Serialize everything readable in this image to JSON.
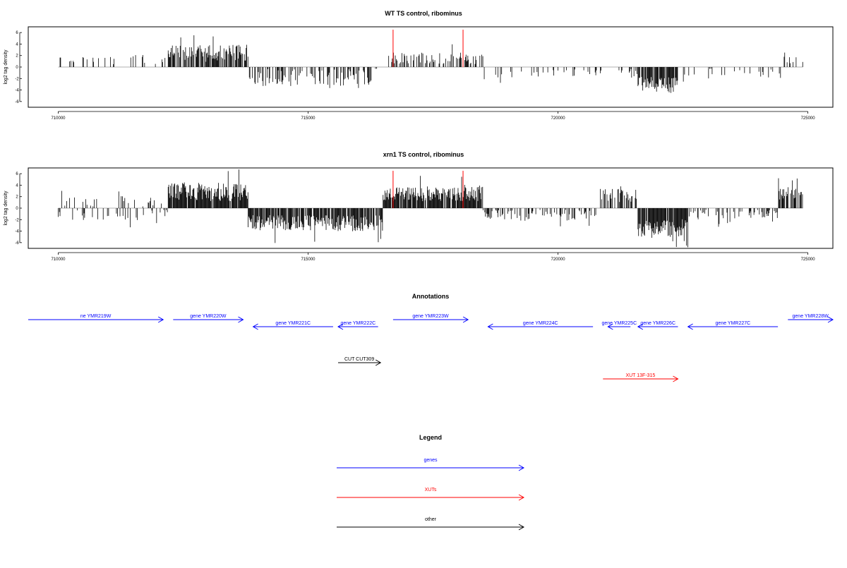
{
  "chart_data": [
    {
      "type": "bar",
      "title": "WT TS control, ribominus",
      "ylabel": "log2 tag density",
      "xlim": [
        709400,
        725500
      ],
      "ylim": [
        -7,
        7
      ],
      "x_ticks": [
        710000,
        715000,
        720000,
        725000
      ],
      "x_tick_labels": [
        "710000",
        "715000",
        "720000",
        "725000"
      ],
      "y_ticks": [
        -6,
        -4,
        -2,
        0,
        2,
        4,
        6
      ],
      "y_tick_labels": [
        "-6",
        "-4",
        "-2",
        "0",
        "2",
        "4",
        "6"
      ],
      "red_lines": [
        716700,
        718100
      ],
      "red_line_value": 6.5,
      "segments": [
        {
          "start": 710000,
          "end": 712200,
          "level": 1.3,
          "var": 0.8,
          "dens": 0.12,
          "sign": 1
        },
        {
          "start": 712200,
          "end": 713800,
          "level": 2.4,
          "var": 1.5,
          "dens": 0.7,
          "sign": 1
        },
        {
          "start": 713800,
          "end": 716300,
          "level": 1.8,
          "var": 1.5,
          "dens": 0.45,
          "sign": -1
        },
        {
          "start": 716300,
          "end": 716600,
          "level": 0.4,
          "var": 0.3,
          "dens": 0.1,
          "sign": -1
        },
        {
          "start": 716600,
          "end": 718500,
          "level": 1.5,
          "var": 1.0,
          "dens": 0.4,
          "sign": 1
        },
        {
          "start": 718500,
          "end": 720800,
          "level": 1.0,
          "var": 0.8,
          "dens": 0.1,
          "sign": -1
        },
        {
          "start": 720800,
          "end": 721600,
          "level": 1.1,
          "var": 0.8,
          "dens": 0.2,
          "sign": -1
        },
        {
          "start": 721600,
          "end": 722400,
          "level": 3.0,
          "var": 1.3,
          "dens": 0.9,
          "sign": -1
        },
        {
          "start": 722400,
          "end": 724500,
          "level": 1.0,
          "var": 1.0,
          "dens": 0.12,
          "sign": -1
        },
        {
          "start": 724500,
          "end": 724900,
          "level": 1.2,
          "var": 0.6,
          "dens": 0.25,
          "sign": 1
        }
      ],
      "seed": 11
    },
    {
      "type": "bar",
      "title": "xrn1 TS control, ribominus",
      "ylabel": "log2 tag density",
      "xlim": [
        709400,
        725500
      ],
      "ylim": [
        -7,
        7
      ],
      "x_ticks": [
        710000,
        715000,
        720000,
        725000
      ],
      "x_tick_labels": [
        "710000",
        "715000",
        "720000",
        "725000"
      ],
      "y_ticks": [
        -6,
        -4,
        -2,
        0,
        2,
        4,
        6
      ],
      "y_tick_labels": [
        "-6",
        "-4",
        "-2",
        "0",
        "2",
        "4",
        "6"
      ],
      "red_lines": [
        716700,
        718100
      ],
      "red_line_value": 6.5,
      "segments": [
        {
          "start": 710000,
          "end": 712200,
          "level": 1.2,
          "var": 0.9,
          "dens": 0.35,
          "sign": 0
        },
        {
          "start": 712200,
          "end": 713800,
          "level": 2.8,
          "var": 1.6,
          "dens": 0.9,
          "sign": 1
        },
        {
          "start": 713800,
          "end": 716500,
          "level": 2.6,
          "var": 1.4,
          "dens": 0.85,
          "sign": -1
        },
        {
          "start": 716500,
          "end": 718500,
          "level": 2.5,
          "var": 1.3,
          "dens": 0.9,
          "sign": 1
        },
        {
          "start": 718500,
          "end": 720800,
          "level": 1.2,
          "var": 1.0,
          "dens": 0.4,
          "sign": -1
        },
        {
          "start": 720800,
          "end": 721600,
          "level": 2.2,
          "var": 1.2,
          "dens": 0.5,
          "sign": 1
        },
        {
          "start": 721600,
          "end": 722600,
          "level": 3.4,
          "var": 1.6,
          "dens": 0.95,
          "sign": -1
        },
        {
          "start": 722600,
          "end": 724400,
          "level": 1.1,
          "var": 0.9,
          "dens": 0.35,
          "sign": -1
        },
        {
          "start": 724400,
          "end": 724900,
          "level": 2.5,
          "var": 1.2,
          "dens": 0.6,
          "sign": 1
        }
      ],
      "seed": 29
    }
  ],
  "annotations": {
    "title": "Annotations",
    "genes": [
      {
        "label": "ne YMR219W",
        "start": 709400,
        "end": 712100,
        "strand": "+",
        "row": 0,
        "color": "#0000ff"
      },
      {
        "label": "gene YMR220W",
        "start": 712300,
        "end": 713700,
        "strand": "+",
        "row": 0,
        "color": "#0000ff"
      },
      {
        "label": "gene YMR221C",
        "start": 713900,
        "end": 715500,
        "strand": "-",
        "row": 1,
        "color": "#0000ff"
      },
      {
        "label": "gene YMR222C",
        "start": 715600,
        "end": 716400,
        "strand": "-",
        "row": 1,
        "color": "#0000ff"
      },
      {
        "label": "gene YMR223W",
        "start": 716700,
        "end": 718200,
        "strand": "+",
        "row": 0,
        "color": "#0000ff"
      },
      {
        "label": "gene YMR224C",
        "start": 718600,
        "end": 720700,
        "strand": "-",
        "row": 1,
        "color": "#0000ff"
      },
      {
        "label": "gene YMR225C",
        "start": 721000,
        "end": 721450,
        "strand": "-",
        "row": 1,
        "color": "#0000ff"
      },
      {
        "label": "gene YMR226C",
        "start": 721600,
        "end": 722400,
        "strand": "-",
        "row": 1,
        "color": "#0000ff"
      },
      {
        "label": "gene YMR227C",
        "start": 722600,
        "end": 724400,
        "strand": "-",
        "row": 1,
        "color": "#0000ff"
      },
      {
        "label": "gene YMR228W",
        "start": 724600,
        "end": 725500,
        "strand": "+",
        "row": 0,
        "color": "#0000ff"
      }
    ],
    "others": [
      {
        "label": "CUT CUT309",
        "start": 715600,
        "end": 716450,
        "strand": "+",
        "row": 2,
        "color": "#000000"
      }
    ],
    "xuts": [
      {
        "label": "XUT 13F-315",
        "start": 720900,
        "end": 722400,
        "strand": "+",
        "row": 3,
        "color": "#ff0000"
      }
    ]
  },
  "legend": {
    "title": "Legend",
    "items": [
      {
        "label": "genes",
        "color": "#0000ff"
      },
      {
        "label": "XUTs",
        "color": "#ff0000"
      },
      {
        "label": "other",
        "color": "#000000"
      }
    ]
  }
}
